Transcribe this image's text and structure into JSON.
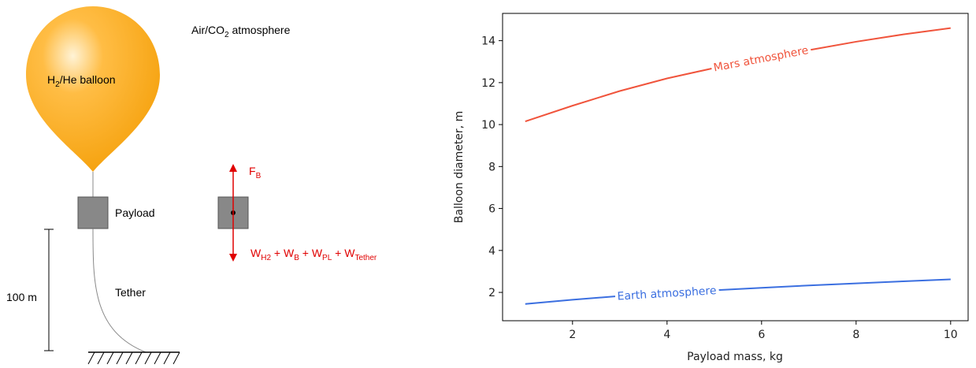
{
  "diagram": {
    "atmosphere": [
      "Air/CO",
      "2",
      " atmosphere"
    ],
    "balloon": [
      "H",
      "2",
      "/He balloon"
    ],
    "payload": "Payload",
    "tether": "Tether",
    "length": "100 m",
    "buoyancy": [
      "F",
      "B"
    ],
    "weight": [
      "W",
      "H2",
      " + W",
      "B",
      " + W",
      "PL",
      " + W",
      "Tether"
    ]
  },
  "chart_data": {
    "type": "line",
    "x": [
      1,
      2,
      3,
      4,
      5,
      6,
      7,
      8,
      9,
      10
    ],
    "series": [
      {
        "name": "Mars atmosphere",
        "color": "#f0543c",
        "values": [
          10.15,
          10.9,
          11.6,
          12.2,
          12.7,
          13.15,
          13.55,
          13.95,
          14.3,
          14.6
        ]
      },
      {
        "name": "Earth atmosphere",
        "color": "#3b6fe0",
        "values": [
          1.45,
          1.65,
          1.83,
          1.97,
          2.1,
          2.22,
          2.33,
          2.43,
          2.53,
          2.62
        ]
      }
    ],
    "xlabel": "Payload mass, kg",
    "ylabel": "Balloon diameter, m",
    "xlim": [
      0.52,
      10.37
    ],
    "ylim": [
      0.65,
      15.3
    ],
    "xticks": [
      2,
      4,
      6,
      8,
      10
    ],
    "yticks": [
      2,
      4,
      6,
      8,
      10,
      12,
      14
    ],
    "grid": false
  }
}
